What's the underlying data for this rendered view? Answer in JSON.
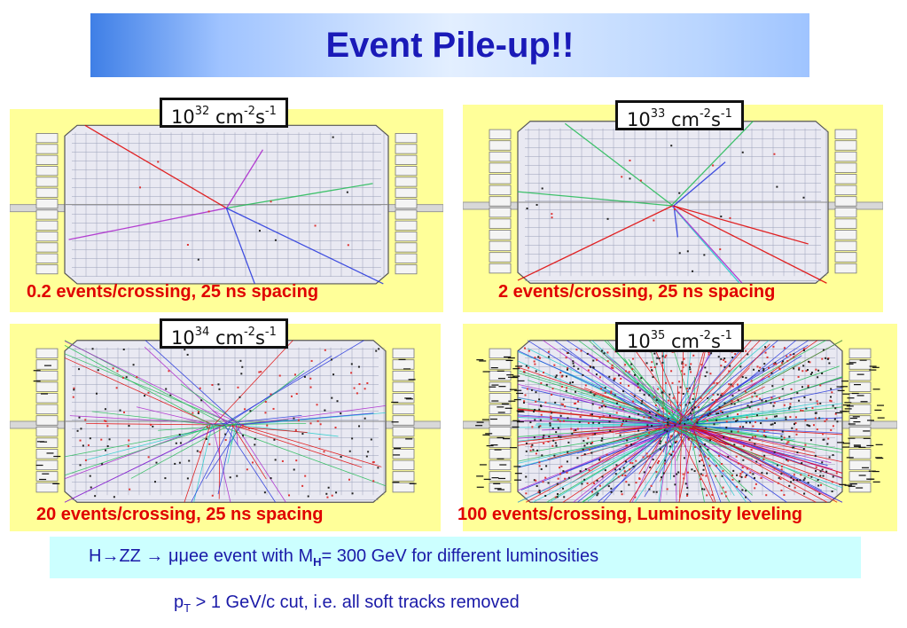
{
  "title": "Event Pile-up!!",
  "panels": [
    {
      "lumi_base": "10",
      "lumi_exp": "32",
      "lumi_unit": "cm",
      "lumi_unit_exp": "-2",
      "lumi_unit2": "s",
      "lumi_unit2_exp": "-1",
      "caption": "0.2 events/crossing, 25 ns spacing",
      "pileup": 0.2
    },
    {
      "lumi_base": "10",
      "lumi_exp": "33",
      "lumi_unit": "cm",
      "lumi_unit_exp": "-2",
      "lumi_unit2": "s",
      "lumi_unit2_exp": "-1",
      "caption": "2 events/crossing, 25 ns spacing",
      "pileup": 2
    },
    {
      "lumi_base": "10",
      "lumi_exp": "34",
      "lumi_unit": "cm",
      "lumi_unit_exp": "-2",
      "lumi_unit2": "s",
      "lumi_unit2_exp": "-1",
      "caption": "20 events/crossing, 25 ns spacing",
      "pileup": 20
    },
    {
      "lumi_base": "10",
      "lumi_exp": "35",
      "lumi_unit": "cm",
      "lumi_unit_exp": "-2",
      "lumi_unit2": "s",
      "lumi_unit2_exp": "-1",
      "caption": "100 events/crossing, Luminosity leveling",
      "pileup": 100
    }
  ],
  "note": {
    "prefix": "H→ZZ → μμee event with M",
    "sub": "H",
    "suffix": "= 300 GeV for different luminosities"
  },
  "footer": {
    "prefix": "p",
    "sub": "T",
    "suffix": " > 1 GeV/c cut, i.e. all soft tracks removed"
  },
  "colors": {
    "title_text": "#1a1ab8",
    "panel_bg": "#ffff99",
    "caption": "#e00000",
    "note_bg": "#ccffff",
    "track_colors": [
      "#e00000",
      "#2233dd",
      "#22bb55",
      "#22cccc",
      "#aa22cc"
    ]
  }
}
